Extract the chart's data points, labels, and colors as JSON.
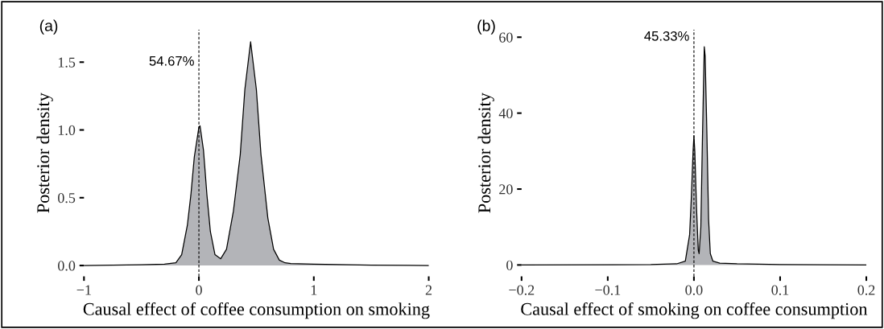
{
  "chart_data": [
    {
      "type": "area",
      "title": "(a)",
      "xlabel": "Causal effect of coffee consumption on smoking",
      "ylabel": "Posterior density",
      "series": [
        {
          "color": "#b3b4b8",
          "x": [
            -1,
            -0.5,
            -0.3,
            -0.2,
            -0.15,
            -0.1,
            -0.07,
            -0.04,
            0,
            0.01,
            0.04,
            0.07,
            0.1,
            0.14,
            0.19,
            0.24,
            0.3,
            0.36,
            0.4,
            0.45,
            0.5,
            0.54,
            0.6,
            0.65,
            0.7,
            0.75,
            0.8,
            1,
            1.5,
            2
          ],
          "values": [
            0,
            0.005,
            0.01,
            0.02,
            0.08,
            0.3,
            0.52,
            0.8,
            1.02,
            1.03,
            0.85,
            0.52,
            0.25,
            0.08,
            0.05,
            0.12,
            0.4,
            0.82,
            1.3,
            1.65,
            1.3,
            0.82,
            0.35,
            0.12,
            0.04,
            0.02,
            0.015,
            0.01,
            0.003,
            0
          ]
        }
      ],
      "xlim": [
        -1,
        2
      ],
      "ylim": [
        -0.08,
        1.74
      ],
      "xticks": [
        {
          "value": -1,
          "label": "−1"
        },
        0,
        1,
        2
      ],
      "yticks": [
        {
          "value": 0,
          "label": "0.0"
        },
        0.5,
        {
          "value": 1,
          "label": "1.0"
        },
        1.5
      ],
      "ref_lines": [
        {
          "axis": "x",
          "value": 0,
          "line_style": "dashed",
          "color": "#000000"
        }
      ],
      "annotations": [
        {
          "text": "54.67%",
          "x": 0,
          "y": 1.5
        }
      ]
    },
    {
      "type": "area",
      "title": "(b)",
      "xlabel": "Causal effect of smoking on coffee consumption",
      "ylabel": "Posterior density",
      "series": [
        {
          "color": "#b3b4b8",
          "x": [
            -0.2,
            -0.05,
            -0.02,
            -0.01,
            -0.005,
            -0.003,
            -0.001,
            0,
            0.001,
            0.003,
            0.005,
            0.006,
            0.008,
            0.01,
            0.012,
            0.013,
            0.015,
            0.017,
            0.019,
            0.022,
            0.03,
            0.05,
            0.1,
            0.2
          ],
          "values": [
            0,
            0.1,
            0.3,
            1,
            8,
            18,
            30,
            34,
            30,
            15,
            4,
            3,
            10,
            35,
            57.5,
            55,
            35,
            12,
            3,
            1,
            0.5,
            0.3,
            0.1,
            0
          ]
        }
      ],
      "xlim": [
        -0.2,
        0.2
      ],
      "ylim": [
        -3,
        62
      ],
      "xticks": [
        {
          "value": -0.2,
          "label": "−0.2"
        },
        {
          "value": -0.1,
          "label": "−0.1"
        },
        {
          "value": 0,
          "label": "0.0"
        },
        0.1,
        0.2
      ],
      "yticks": [
        0,
        20,
        40,
        60
      ],
      "ref_lines": [
        {
          "axis": "x",
          "value": 0,
          "line_style": "dashed",
          "color": "#000000"
        }
      ],
      "annotations": [
        {
          "text": "45.33%",
          "x": 0,
          "y": 60
        }
      ]
    }
  ]
}
